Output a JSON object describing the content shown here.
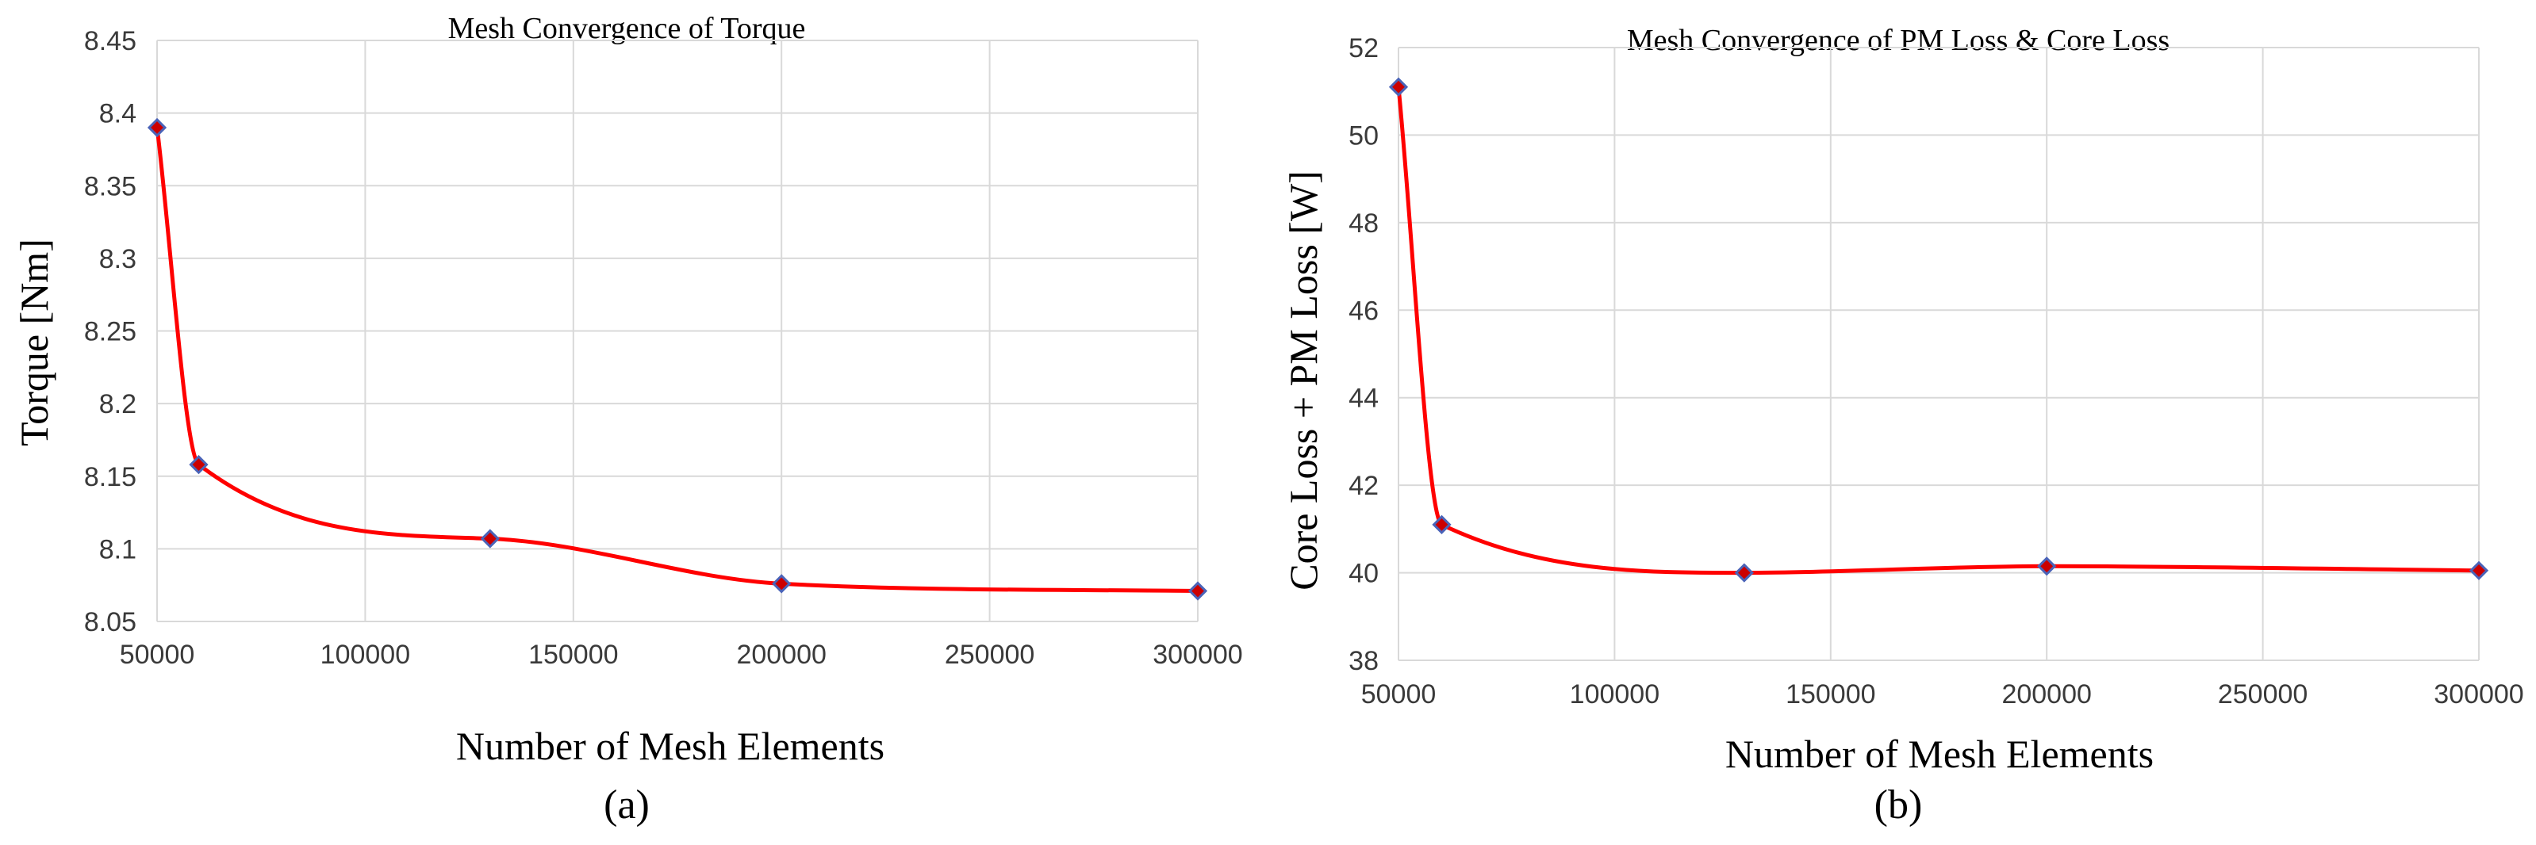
{
  "chart_data": [
    {
      "type": "line",
      "title": "Mesh Convergence of Torque",
      "xlabel": "Number of Mesh Elements",
      "ylabel": "Torque [Nm]",
      "panel_label": "(a)",
      "xlim": [
        50000,
        300000
      ],
      "ylim": [
        8.05,
        8.45
      ],
      "xticks": [
        50000,
        100000,
        150000,
        200000,
        250000,
        300000
      ],
      "yticks": [
        8.05,
        8.1,
        8.15,
        8.2,
        8.25,
        8.3,
        8.35,
        8.4,
        8.45
      ],
      "xtick_labels": [
        "50000",
        "100000",
        "150000",
        "200000",
        "250000",
        "300000"
      ],
      "ytick_labels": [
        "8.05",
        "8.1",
        "8.15",
        "8.2",
        "8.25",
        "8.3",
        "8.35",
        "8.4",
        "8.45"
      ],
      "grid": true,
      "series": [
        {
          "x": [
            50000,
            60000,
            130000,
            200000,
            300000
          ],
          "y": [
            8.39,
            8.158,
            8.107,
            8.076,
            8.071
          ],
          "line_color": "#ff0000",
          "marker_color": "#cc0000",
          "marker_edge_color": "#4a63b8"
        }
      ]
    },
    {
      "type": "line",
      "title": "Mesh Convergence of PM Loss & Core Loss",
      "xlabel": "Number of Mesh Elements",
      "ylabel": "Core Loss + PM Loss [W]",
      "panel_label": "(b)",
      "xlim": [
        50000,
        300000
      ],
      "ylim": [
        38,
        52
      ],
      "xticks": [
        50000,
        100000,
        150000,
        200000,
        250000,
        300000
      ],
      "yticks": [
        38,
        40,
        42,
        44,
        46,
        48,
        50,
        52
      ],
      "xtick_labels": [
        "50000",
        "100000",
        "150000",
        "200000",
        "250000",
        "300000"
      ],
      "ytick_labels": [
        "38",
        "40",
        "42",
        "44",
        "46",
        "48",
        "50",
        "52"
      ],
      "grid": true,
      "series": [
        {
          "x": [
            50000,
            60000,
            130000,
            200000,
            300000
          ],
          "y": [
            51.1,
            41.1,
            40.0,
            40.15,
            40.05
          ],
          "line_color": "#ff0000",
          "marker_color": "#cc0000",
          "marker_edge_color": "#4a63b8"
        }
      ]
    }
  ]
}
